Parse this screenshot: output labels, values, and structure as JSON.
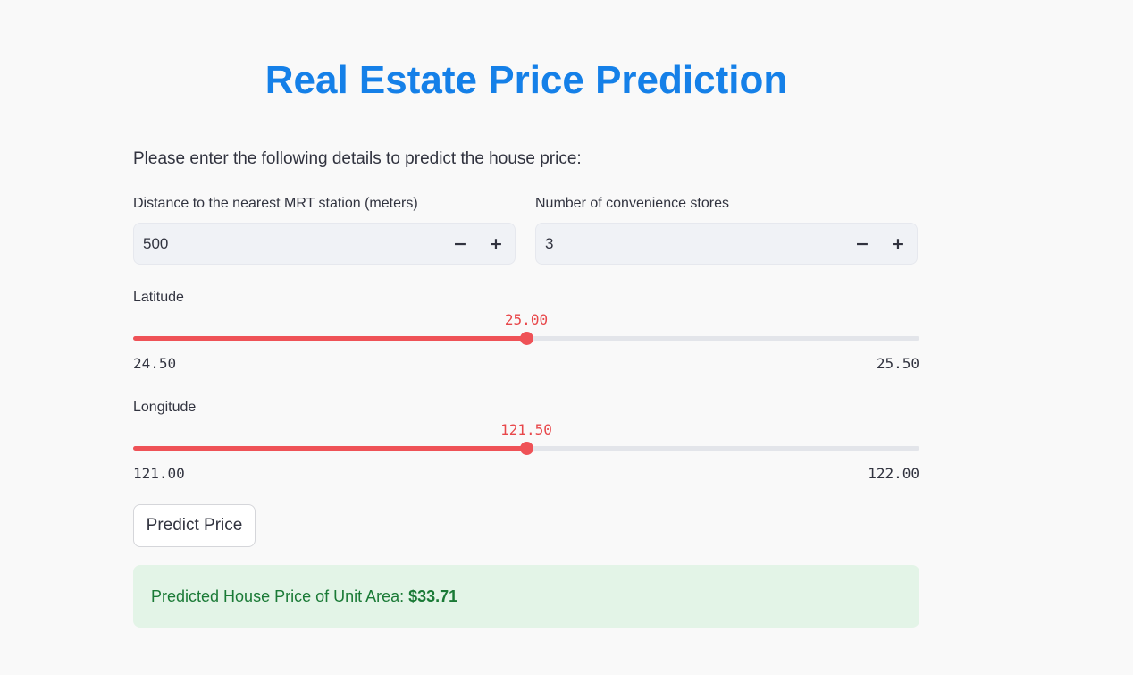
{
  "page": {
    "title": "Real Estate Price Prediction",
    "intro": "Please enter the following details to predict the house price:"
  },
  "inputs": {
    "distance": {
      "label": "Distance to the nearest MRT station (meters)",
      "value": "500"
    },
    "stores": {
      "label": "Number of convenience stores",
      "value": "3"
    },
    "decrement_glyph": "−",
    "increment_glyph": "+"
  },
  "sliders": {
    "latitude": {
      "label": "Latitude",
      "value": "25.00",
      "min": "24.50",
      "max": "25.50",
      "fraction": 0.5
    },
    "longitude": {
      "label": "Longitude",
      "value": "121.50",
      "min": "121.00",
      "max": "122.00",
      "fraction": 0.5
    }
  },
  "actions": {
    "predict_label": "Predict Price"
  },
  "result": {
    "prefix": "Predicted House Price of Unit Area: ",
    "amount": "$33.71"
  },
  "colors": {
    "title": "#1580e8",
    "slider_accent": "#ef5257",
    "result_bg": "#e3f4e7",
    "result_text": "#1a7a36"
  }
}
